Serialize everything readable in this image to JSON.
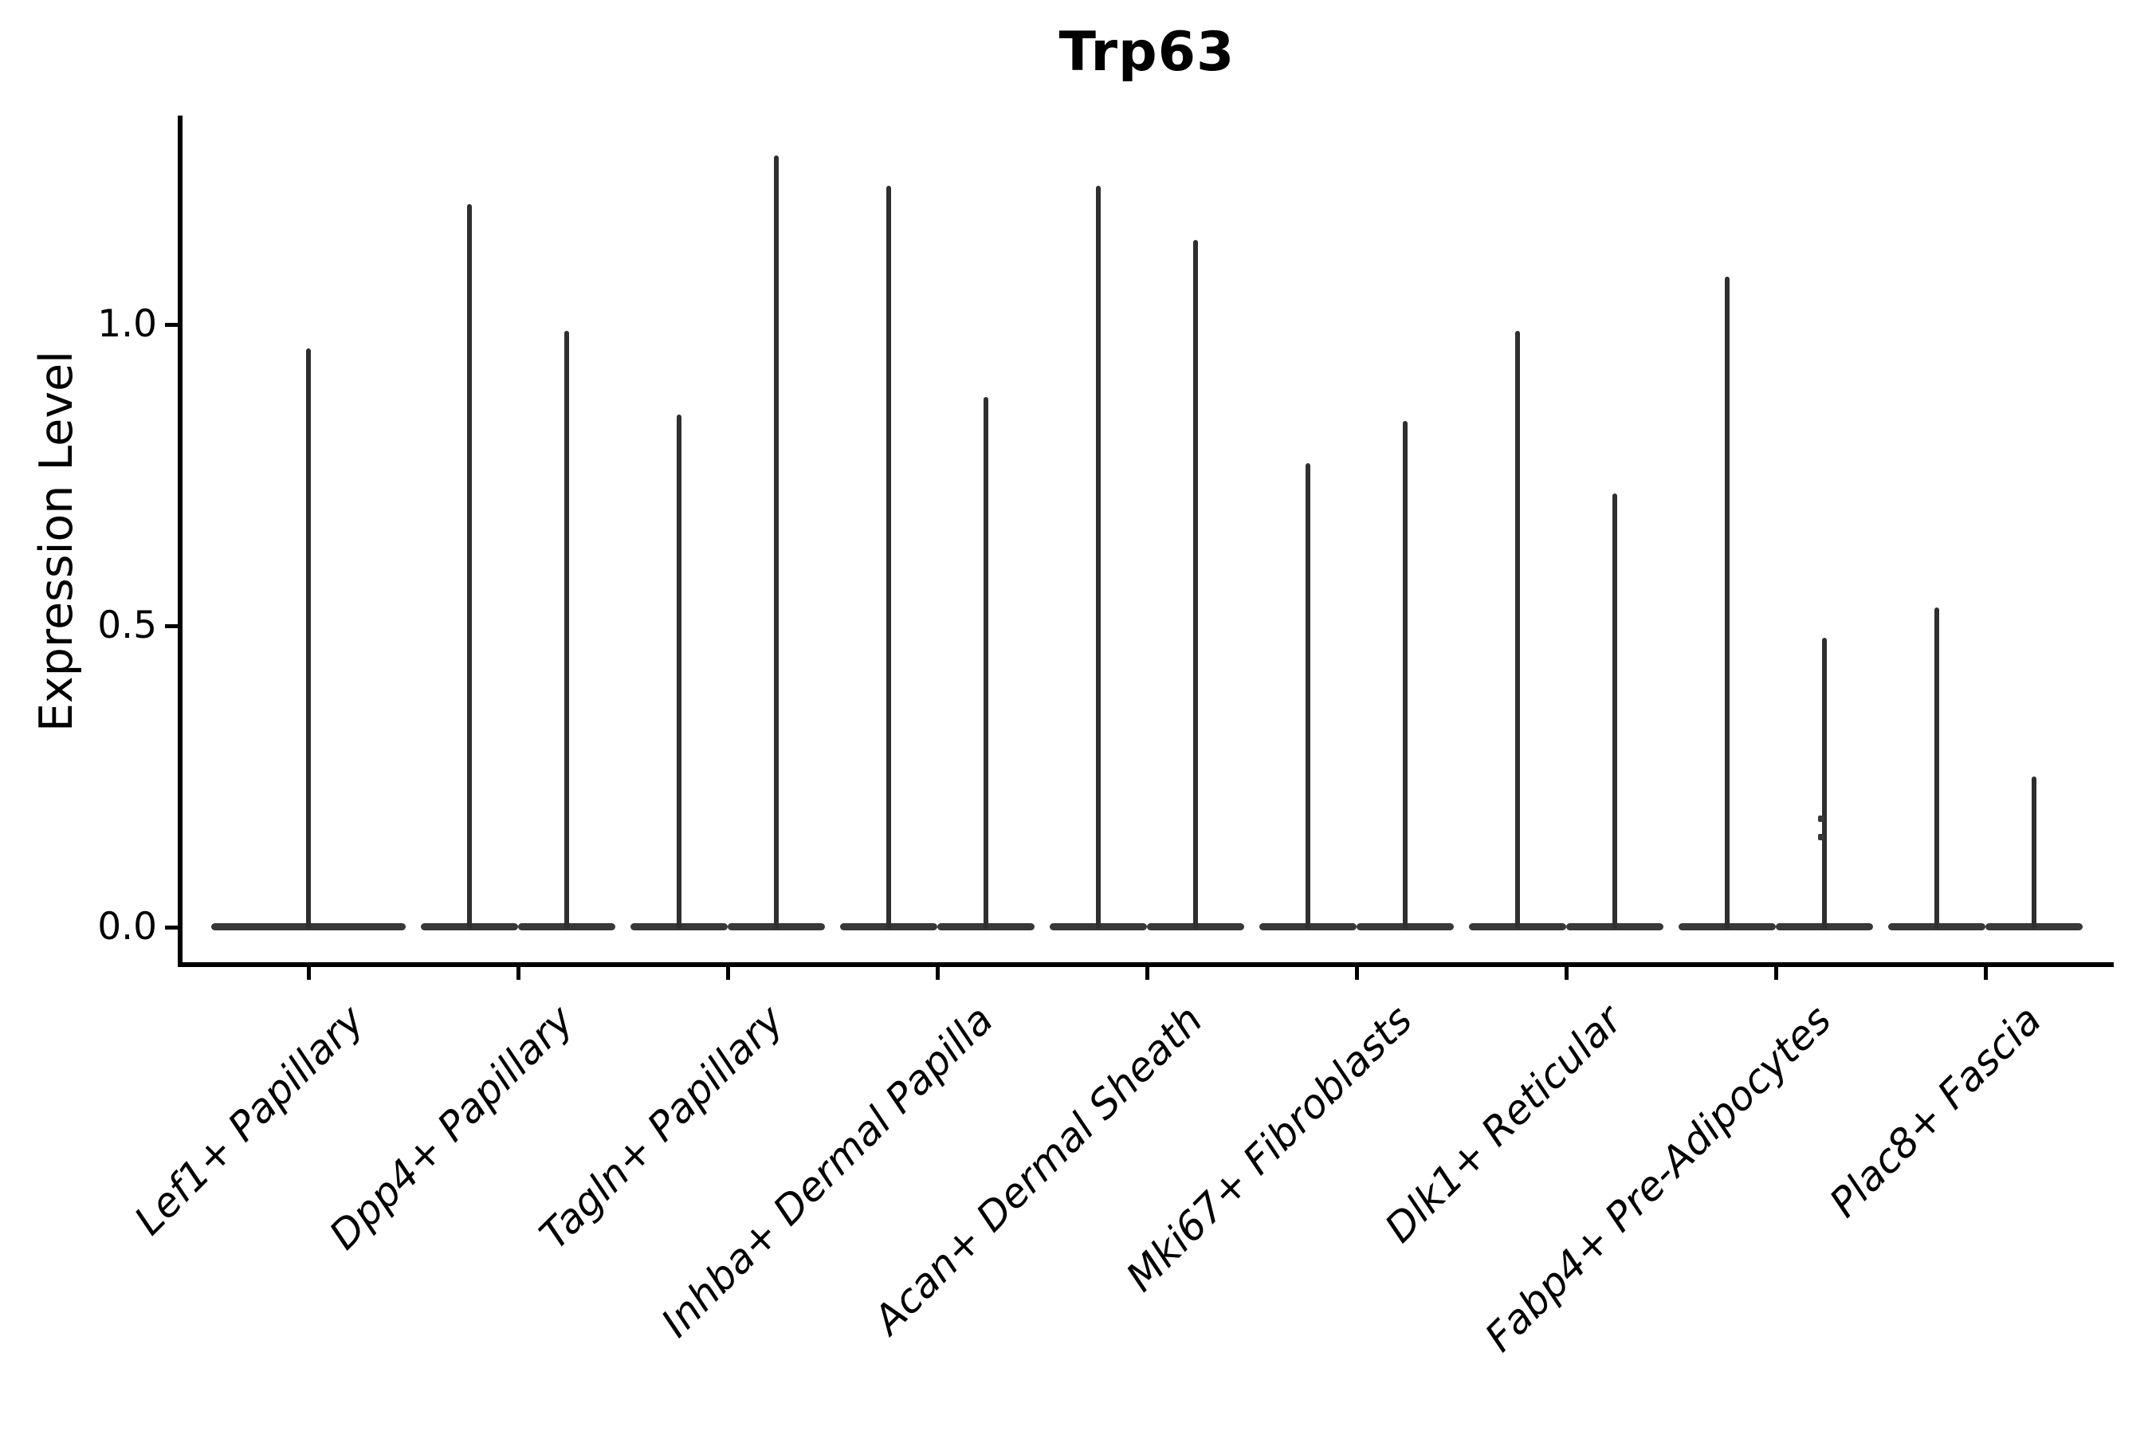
{
  "figure": {
    "title": "Trp63",
    "ylabel": "Expression Level"
  },
  "chart_data": {
    "type": "violin",
    "title": "Trp63",
    "xlabel": "",
    "ylabel": "Expression Level",
    "categories": [
      "Lef1+ Papillary",
      "Dpp4+ Papillary",
      "Tagln+ Papillary",
      "Inhba+ Dermal Papilla",
      "Acan+ Dermal Sheath",
      "Mki67+ Fibroblasts",
      "Dlk1+ Reticular",
      "Fabp4+ Pre-Adipocytes",
      "Plac8+ Fascia"
    ],
    "violins": [
      {
        "category": "Lef1+ Papillary",
        "spike_max_values": [
          0.96
        ]
      },
      {
        "category": "Dpp4+ Papillary",
        "spike_max_values": [
          1.2,
          0.99
        ]
      },
      {
        "category": "Tagln+ Papillary",
        "spike_max_values": [
          0.85,
          1.28
        ]
      },
      {
        "category": "Inhba+ Dermal Papilla",
        "spike_max_values": [
          1.23,
          0.88
        ]
      },
      {
        "category": "Acan+ Dermal Sheath",
        "spike_max_values": [
          1.23,
          1.14
        ]
      },
      {
        "category": "Mki67+ Fibroblasts",
        "spike_max_values": [
          0.77,
          0.84
        ]
      },
      {
        "category": "Dlk1+ Reticular",
        "spike_max_values": [
          0.99,
          0.72
        ]
      },
      {
        "category": "Fabp4+ Pre-Adipocytes",
        "spike_max_values": [
          1.08,
          0.48
        ],
        "outlier_points": [
          0.18,
          0.15
        ]
      },
      {
        "category": "Plac8+ Fascia",
        "spike_max_values": [
          0.53,
          0.25
        ]
      }
    ],
    "yticks": [
      {
        "label": "0.0",
        "value": 0.0
      },
      {
        "label": "0.5",
        "value": 0.5
      },
      {
        "label": "1.0",
        "value": 1.0
      }
    ],
    "ylim": [
      -0.06,
      1.34
    ],
    "grid": false,
    "legend": "none",
    "x_tick_rotation_deg": 45,
    "x_tick_font_style": "italic",
    "colors": {
      "violin": "#2f2f2f",
      "violin_base": "#383838",
      "axis": "#000000",
      "background": "#ffffff"
    }
  }
}
